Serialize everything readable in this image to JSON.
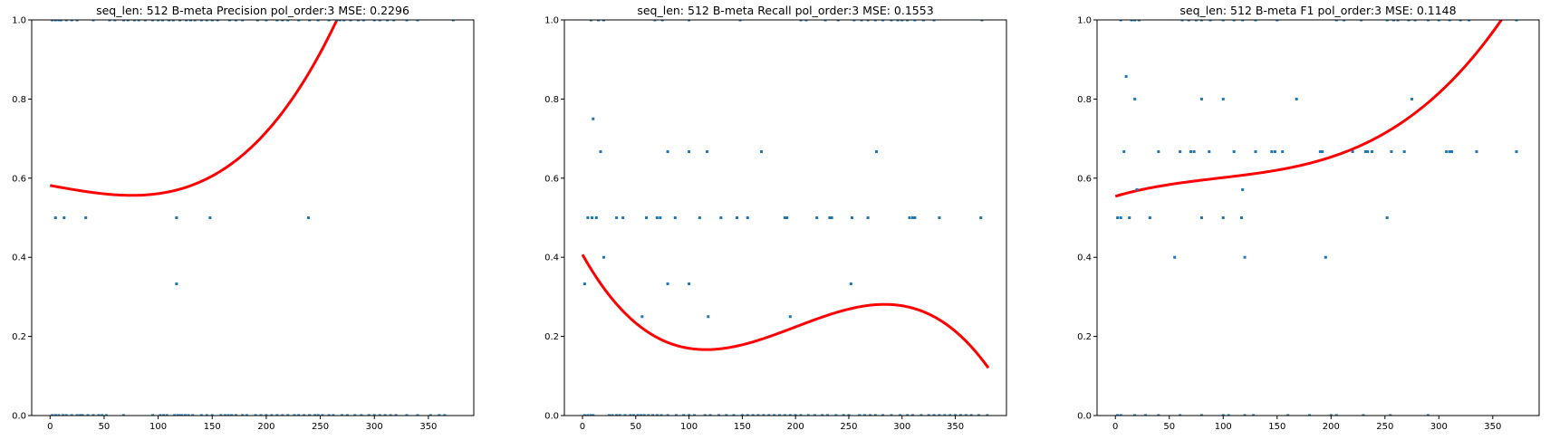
{
  "chart_data": [
    {
      "type": "scatter",
      "title": "seq_len: 512    B-meta   Precision   pol_order:3   MSE: 0.2296",
      "xlim": [
        -17,
        392
      ],
      "ylim": [
        0,
        1
      ],
      "xticks": [
        0,
        50,
        100,
        150,
        200,
        250,
        300,
        350
      ],
      "yticks": [
        0.0,
        0.2,
        0.4,
        0.6,
        0.8,
        1.0
      ],
      "tick_labels_x": [
        "0",
        "50",
        "100",
        "150",
        "200",
        "250",
        "300",
        "350"
      ],
      "tick_labels_y": [
        "0.0",
        "0.2",
        "0.4",
        "0.6",
        "0.8",
        "1.0"
      ],
      "grid": false,
      "points": [
        [
          2,
          0
        ],
        [
          5,
          0
        ],
        [
          8,
          0
        ],
        [
          12,
          0
        ],
        [
          15,
          0
        ],
        [
          20,
          0
        ],
        [
          25,
          0
        ],
        [
          28,
          0
        ],
        [
          30,
          0
        ],
        [
          35,
          0
        ],
        [
          40,
          0
        ],
        [
          45,
          0
        ],
        [
          48,
          0
        ],
        [
          52,
          0
        ],
        [
          68,
          0
        ],
        [
          95,
          0
        ],
        [
          102,
          0
        ],
        [
          105,
          0
        ],
        [
          108,
          0
        ],
        [
          115,
          0
        ],
        [
          118,
          0
        ],
        [
          120,
          0
        ],
        [
          122,
          0
        ],
        [
          125,
          0
        ],
        [
          128,
          0
        ],
        [
          132,
          0
        ],
        [
          140,
          0
        ],
        [
          145,
          0
        ],
        [
          150,
          0
        ],
        [
          158,
          0
        ],
        [
          162,
          0
        ],
        [
          165,
          0
        ],
        [
          168,
          0
        ],
        [
          172,
          0
        ],
        [
          178,
          0
        ],
        [
          182,
          0
        ],
        [
          190,
          0
        ],
        [
          195,
          0
        ],
        [
          200,
          0
        ],
        [
          205,
          0
        ],
        [
          210,
          0
        ],
        [
          215,
          0
        ],
        [
          220,
          0
        ],
        [
          226,
          0
        ],
        [
          230,
          0
        ],
        [
          235,
          0
        ],
        [
          240,
          0
        ],
        [
          245,
          0
        ],
        [
          248,
          0
        ],
        [
          252,
          0
        ],
        [
          258,
          0
        ],
        [
          262,
          0
        ],
        [
          270,
          0
        ],
        [
          275,
          0
        ],
        [
          282,
          0
        ],
        [
          288,
          0
        ],
        [
          295,
          0
        ],
        [
          300,
          0
        ],
        [
          305,
          0
        ],
        [
          310,
          0
        ],
        [
          315,
          0
        ],
        [
          320,
          0
        ],
        [
          330,
          0
        ],
        [
          340,
          0
        ],
        [
          352,
          0
        ],
        [
          360,
          0
        ],
        [
          365,
          0
        ],
        [
          2,
          1
        ],
        [
          5,
          1
        ],
        [
          8,
          1
        ],
        [
          10,
          1
        ],
        [
          15,
          1
        ],
        [
          20,
          1
        ],
        [
          25,
          1
        ],
        [
          40,
          1
        ],
        [
          55,
          1
        ],
        [
          60,
          1
        ],
        [
          68,
          1
        ],
        [
          72,
          1
        ],
        [
          78,
          1
        ],
        [
          82,
          1
        ],
        [
          88,
          1
        ],
        [
          95,
          1
        ],
        [
          100,
          1
        ],
        [
          104,
          1
        ],
        [
          110,
          1
        ],
        [
          114,
          1
        ],
        [
          120,
          1
        ],
        [
          126,
          1
        ],
        [
          130,
          1
        ],
        [
          134,
          1
        ],
        [
          140,
          1
        ],
        [
          145,
          1
        ],
        [
          150,
          1
        ],
        [
          155,
          1
        ],
        [
          166,
          1
        ],
        [
          172,
          1
        ],
        [
          178,
          1
        ],
        [
          192,
          1
        ],
        [
          200,
          1
        ],
        [
          210,
          1
        ],
        [
          215,
          1
        ],
        [
          220,
          1
        ],
        [
          230,
          1
        ],
        [
          240,
          1
        ],
        [
          248,
          1
        ],
        [
          258,
          1
        ],
        [
          265,
          1
        ],
        [
          268,
          1
        ],
        [
          272,
          1
        ],
        [
          278,
          1
        ],
        [
          285,
          1
        ],
        [
          290,
          1
        ],
        [
          300,
          1
        ],
        [
          305,
          1
        ],
        [
          312,
          1
        ],
        [
          318,
          1
        ],
        [
          330,
          1
        ],
        [
          340,
          1
        ],
        [
          373,
          1
        ],
        [
          5,
          0.5
        ],
        [
          13,
          0.5
        ],
        [
          33,
          0.5
        ],
        [
          117,
          0.5
        ],
        [
          148,
          0.5
        ],
        [
          239,
          0.5
        ],
        [
          117,
          0.333
        ]
      ],
      "fit": [
        0.5815,
        -0.000488,
        -1.8e-07,
        3e-08
      ],
      "fit_range": [
        0,
        374
      ],
      "point_color": "#1f77b4",
      "fit_color": "#ff0000"
    },
    {
      "type": "scatter",
      "title": "seq_len: 512    B-meta   Recall   pol_order:3   MSE: 0.1553",
      "xlim": [
        -17,
        398
      ],
      "ylim": [
        0,
        1
      ],
      "xticks": [
        0,
        50,
        100,
        150,
        200,
        250,
        300,
        350
      ],
      "yticks": [
        0.0,
        0.2,
        0.4,
        0.6,
        0.8,
        1.0
      ],
      "tick_labels_x": [
        "0",
        "50",
        "100",
        "150",
        "200",
        "250",
        "300",
        "350"
      ],
      "tick_labels_y": [
        "0.0",
        "0.2",
        "0.4",
        "0.6",
        "0.8",
        "1.0"
      ],
      "grid": false,
      "points": [
        [
          2,
          0
        ],
        [
          5,
          0
        ],
        [
          8,
          0
        ],
        [
          10,
          0
        ],
        [
          25,
          0
        ],
        [
          28,
          0
        ],
        [
          32,
          0
        ],
        [
          35,
          0
        ],
        [
          40,
          0
        ],
        [
          45,
          0
        ],
        [
          48,
          0
        ],
        [
          52,
          0
        ],
        [
          55,
          0
        ],
        [
          58,
          0
        ],
        [
          62,
          0
        ],
        [
          66,
          0
        ],
        [
          70,
          0
        ],
        [
          74,
          0
        ],
        [
          80,
          0
        ],
        [
          88,
          0
        ],
        [
          95,
          0
        ],
        [
          100,
          0
        ],
        [
          105,
          0
        ],
        [
          115,
          0
        ],
        [
          120,
          0
        ],
        [
          128,
          0
        ],
        [
          135,
          0
        ],
        [
          142,
          0
        ],
        [
          150,
          0
        ],
        [
          155,
          0
        ],
        [
          160,
          0
        ],
        [
          165,
          0
        ],
        [
          170,
          0
        ],
        [
          175,
          0
        ],
        [
          180,
          0
        ],
        [
          185,
          0
        ],
        [
          190,
          0
        ],
        [
          195,
          0
        ],
        [
          200,
          0
        ],
        [
          205,
          0
        ],
        [
          212,
          0
        ],
        [
          218,
          0
        ],
        [
          225,
          0
        ],
        [
          230,
          0
        ],
        [
          238,
          0
        ],
        [
          245,
          0
        ],
        [
          250,
          0
        ],
        [
          260,
          0
        ],
        [
          265,
          0
        ],
        [
          270,
          0
        ],
        [
          275,
          0
        ],
        [
          282,
          0
        ],
        [
          290,
          0
        ],
        [
          298,
          0
        ],
        [
          305,
          0
        ],
        [
          310,
          0
        ],
        [
          318,
          0
        ],
        [
          325,
          0
        ],
        [
          330,
          0
        ],
        [
          335,
          0
        ],
        [
          340,
          0
        ],
        [
          345,
          0
        ],
        [
          350,
          0
        ],
        [
          355,
          0
        ],
        [
          360,
          0
        ],
        [
          365,
          0
        ],
        [
          372,
          0
        ],
        [
          380,
          0
        ],
        [
          8,
          1
        ],
        [
          15,
          1
        ],
        [
          20,
          1
        ],
        [
          68,
          1
        ],
        [
          75,
          1
        ],
        [
          100,
          1
        ],
        [
          148,
          1
        ],
        [
          205,
          1
        ],
        [
          210,
          1
        ],
        [
          228,
          1
        ],
        [
          240,
          1
        ],
        [
          255,
          1
        ],
        [
          262,
          1
        ],
        [
          268,
          1
        ],
        [
          275,
          1
        ],
        [
          282,
          1
        ],
        [
          290,
          1
        ],
        [
          296,
          1
        ],
        [
          300,
          1
        ],
        [
          305,
          1
        ],
        [
          312,
          1
        ],
        [
          320,
          1
        ],
        [
          330,
          1
        ],
        [
          375,
          1
        ],
        [
          10,
          0.75
        ],
        [
          17,
          0.667
        ],
        [
          80,
          0.667
        ],
        [
          100,
          0.667
        ],
        [
          117,
          0.667
        ],
        [
          168,
          0.667
        ],
        [
          276,
          0.667
        ],
        [
          5,
          0.5
        ],
        [
          9,
          0.5
        ],
        [
          13,
          0.5
        ],
        [
          32,
          0.5
        ],
        [
          38,
          0.5
        ],
        [
          60,
          0.5
        ],
        [
          70,
          0.5
        ],
        [
          73,
          0.5
        ],
        [
          87,
          0.5
        ],
        [
          110,
          0.5
        ],
        [
          130,
          0.5
        ],
        [
          145,
          0.5
        ],
        [
          155,
          0.5
        ],
        [
          190,
          0.5
        ],
        [
          192,
          0.5
        ],
        [
          220,
          0.5
        ],
        [
          232,
          0.5
        ],
        [
          234,
          0.5
        ],
        [
          253,
          0.5
        ],
        [
          268,
          0.5
        ],
        [
          307,
          0.5
        ],
        [
          310,
          0.5
        ],
        [
          312,
          0.5
        ],
        [
          335,
          0.5
        ],
        [
          374,
          0.5
        ],
        [
          2,
          0.333
        ],
        [
          20,
          0.4
        ],
        [
          80,
          0.333
        ],
        [
          100,
          0.333
        ],
        [
          252,
          0.333
        ],
        [
          56,
          0.25
        ],
        [
          118,
          0.25
        ],
        [
          195,
          0.25
        ]
      ],
      "fit": [
        0.4069,
        -0.004795,
        2.912e-05,
        -4.858e-08
      ],
      "fit_range": [
        0,
        381
      ],
      "point_color": "#1f77b4",
      "fit_color": "#ff0000"
    },
    {
      "type": "scatter",
      "title": "seq_len: 512    B-meta   F1   pol_order:3   MSE: 0.1148",
      "xlim": [
        -17,
        393
      ],
      "ylim": [
        0,
        1
      ],
      "xticks": [
        0,
        50,
        100,
        150,
        200,
        250,
        300,
        350
      ],
      "yticks": [
        0.0,
        0.2,
        0.4,
        0.6,
        0.8,
        1.0
      ],
      "tick_labels_x": [
        "0",
        "50",
        "100",
        "150",
        "200",
        "250",
        "300",
        "350"
      ],
      "tick_labels_y": [
        "0.0",
        "0.2",
        "0.4",
        "0.6",
        "0.8",
        "1.0"
      ],
      "grid": false,
      "points": [
        [
          2,
          0
        ],
        [
          5,
          0
        ],
        [
          18,
          0
        ],
        [
          28,
          0
        ],
        [
          40,
          0
        ],
        [
          60,
          0
        ],
        [
          80,
          0
        ],
        [
          100,
          0
        ],
        [
          105,
          0
        ],
        [
          120,
          0
        ],
        [
          128,
          0
        ],
        [
          160,
          0
        ],
        [
          180,
          0
        ],
        [
          200,
          0
        ],
        [
          205,
          0
        ],
        [
          230,
          0
        ],
        [
          255,
          0
        ],
        [
          290,
          0
        ],
        [
          5,
          1
        ],
        [
          15,
          1
        ],
        [
          18,
          1
        ],
        [
          22,
          1
        ],
        [
          62,
          1
        ],
        [
          68,
          1
        ],
        [
          75,
          1
        ],
        [
          80,
          1
        ],
        [
          88,
          1
        ],
        [
          100,
          1
        ],
        [
          110,
          1
        ],
        [
          118,
          1
        ],
        [
          130,
          1
        ],
        [
          150,
          1
        ],
        [
          205,
          1
        ],
        [
          212,
          1
        ],
        [
          228,
          1
        ],
        [
          252,
          1
        ],
        [
          258,
          1
        ],
        [
          262,
          1
        ],
        [
          272,
          1
        ],
        [
          278,
          1
        ],
        [
          290,
          1
        ],
        [
          300,
          1
        ],
        [
          310,
          1
        ],
        [
          320,
          1
        ],
        [
          328,
          1
        ],
        [
          372,
          1
        ],
        [
          10,
          0.857
        ],
        [
          18,
          0.8
        ],
        [
          80,
          0.8
        ],
        [
          100,
          0.8
        ],
        [
          168,
          0.8
        ],
        [
          275,
          0.8
        ],
        [
          8,
          0.667
        ],
        [
          40,
          0.667
        ],
        [
          60,
          0.667
        ],
        [
          70,
          0.667
        ],
        [
          73,
          0.667
        ],
        [
          87,
          0.667
        ],
        [
          110,
          0.667
        ],
        [
          130,
          0.667
        ],
        [
          145,
          0.667
        ],
        [
          148,
          0.667
        ],
        [
          155,
          0.667
        ],
        [
          190,
          0.667
        ],
        [
          192,
          0.667
        ],
        [
          220,
          0.667
        ],
        [
          232,
          0.667
        ],
        [
          234,
          0.667
        ],
        [
          238,
          0.667
        ],
        [
          256,
          0.667
        ],
        [
          268,
          0.667
        ],
        [
          307,
          0.667
        ],
        [
          310,
          0.667
        ],
        [
          312,
          0.667
        ],
        [
          335,
          0.667
        ],
        [
          372,
          0.667
        ],
        [
          20,
          0.571
        ],
        [
          118,
          0.571
        ],
        [
          2,
          0.5
        ],
        [
          5,
          0.5
        ],
        [
          13,
          0.5
        ],
        [
          32,
          0.5
        ],
        [
          80,
          0.5
        ],
        [
          100,
          0.5
        ],
        [
          117,
          0.5
        ],
        [
          252,
          0.5
        ],
        [
          55,
          0.4
        ],
        [
          120,
          0.4
        ],
        [
          195,
          0.4
        ]
      ],
      "fit": [
        0.5543,
        0.0007963,
        -4.993e-06,
        1.745e-08
      ],
      "fit_range": [
        0,
        375
      ],
      "point_color": "#1f77b4",
      "fit_color": "#ff0000"
    }
  ]
}
